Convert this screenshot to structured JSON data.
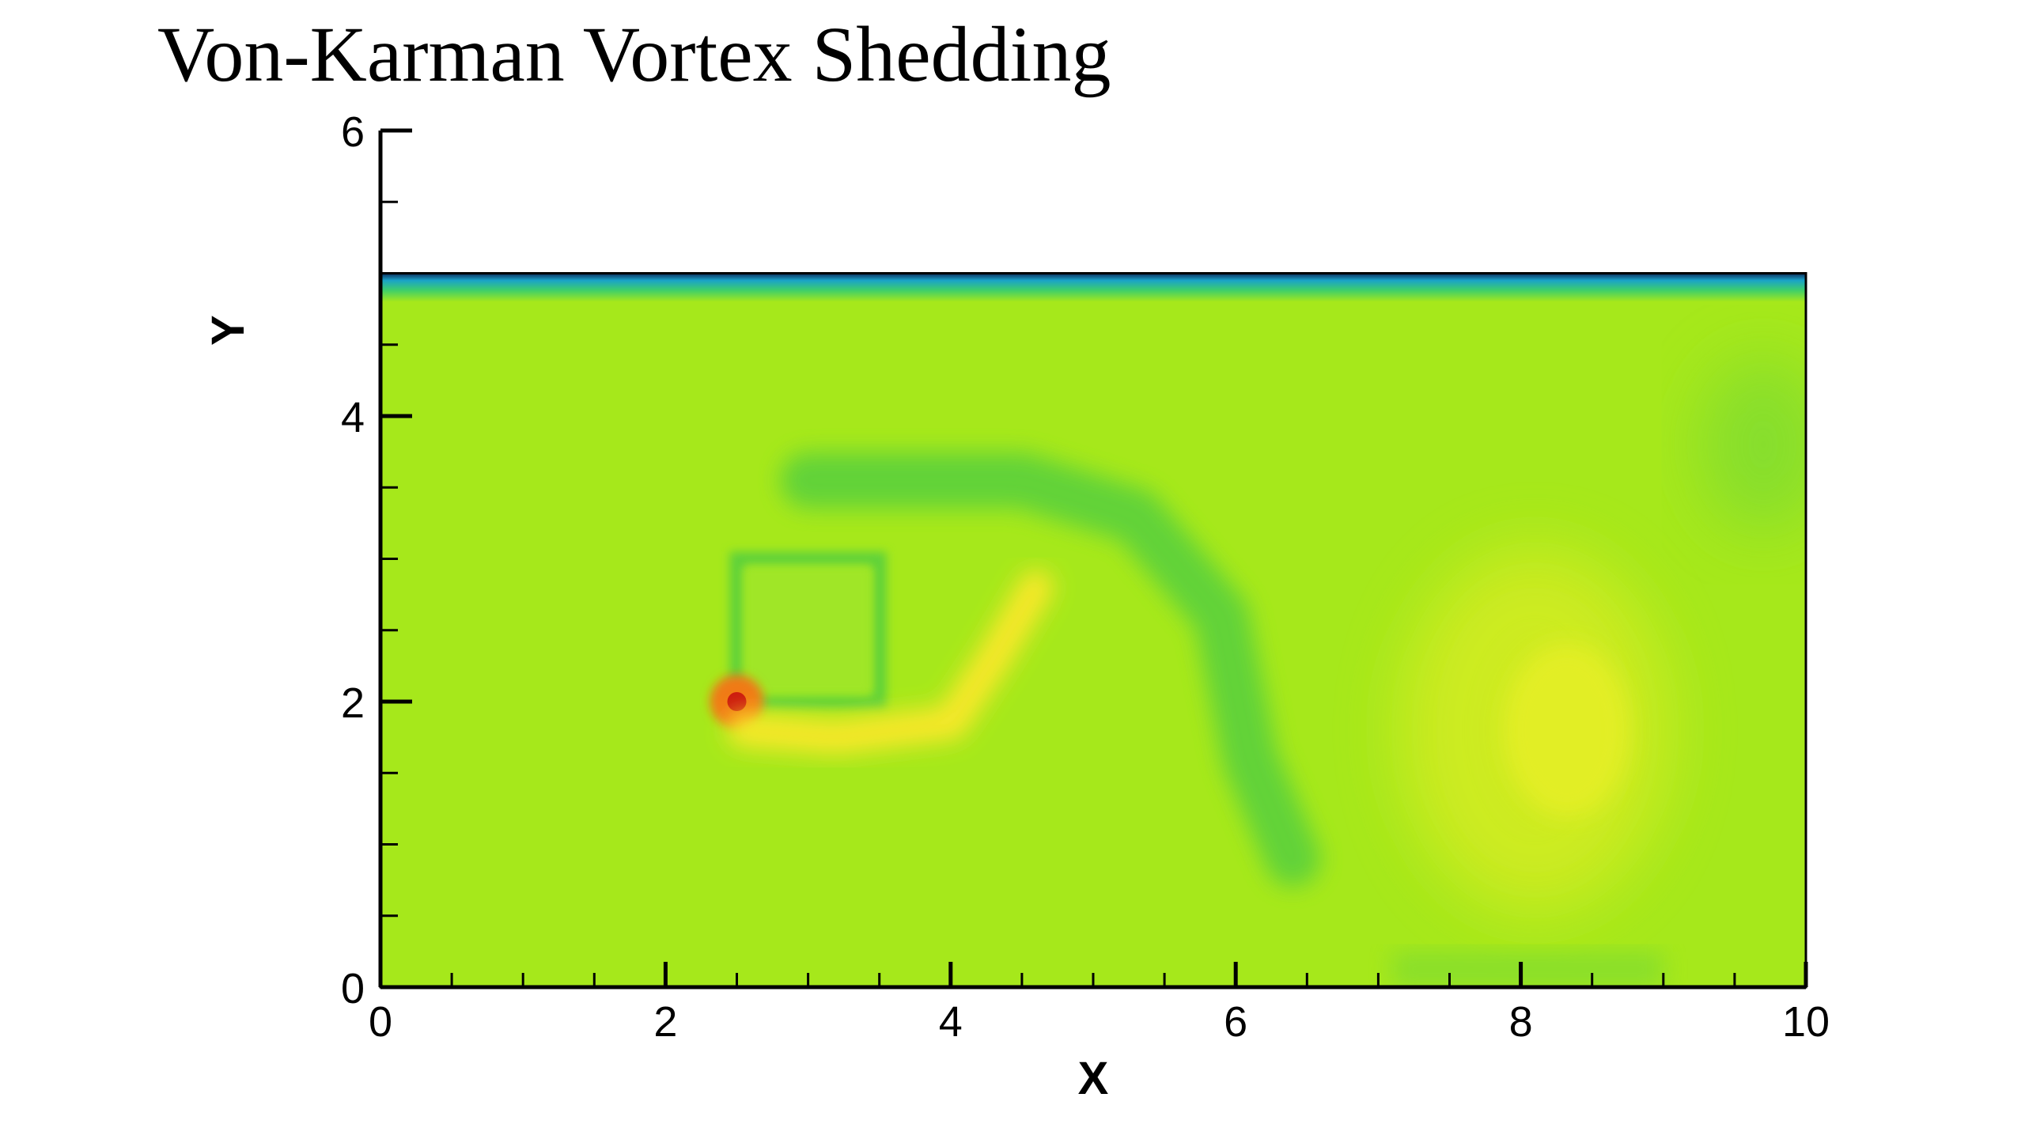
{
  "title": "Von-Karman Vortex Shedding",
  "colors": {
    "background_field": "#a6e81b",
    "top_wall_band": [
      "#0b2a5a",
      "#1aa3c8",
      "#3ecf6a"
    ],
    "low_band": "#5fd23a",
    "high_band": "#fbe82a",
    "peak": "#cc1a10"
  },
  "chart_data": {
    "type": "heatmap",
    "title": "Von-Karman Vortex Shedding",
    "xlabel": "X",
    "ylabel": "Y",
    "xlim": [
      0,
      10
    ],
    "ylim": [
      0,
      6
    ],
    "x_ticks": [
      0,
      2,
      4,
      6,
      8,
      10
    ],
    "y_ticks": [
      0,
      2,
      4,
      6
    ],
    "x_minor_step": 0.5,
    "y_minor_step": 0.5,
    "domain": {
      "x": [
        0,
        10
      ],
      "y": [
        0,
        5
      ]
    },
    "grid": false,
    "legend": "none",
    "features": [
      {
        "kind": "obstacle-square",
        "x": [
          2.5,
          3.5
        ],
        "y": [
          2,
          3
        ]
      },
      {
        "kind": "high-spot",
        "x": 2.5,
        "y": 2.0,
        "level": "peak"
      },
      {
        "kind": "high-band",
        "path_x": [
          2.55,
          3.2,
          4.0,
          4.3,
          4.6
        ],
        "path_y": [
          1.8,
          1.75,
          1.85,
          2.3,
          2.8
        ],
        "level": "high"
      },
      {
        "kind": "low-band",
        "path_x": [
          3.0,
          4.5,
          5.3,
          5.9,
          6.1,
          6.4
        ],
        "path_y": [
          3.55,
          3.55,
          3.3,
          2.6,
          1.6,
          0.9
        ],
        "level": "low"
      },
      {
        "kind": "high-vortex",
        "x": 8.1,
        "y": 1.8,
        "level": "high"
      },
      {
        "kind": "low-vortex",
        "x": 9.7,
        "y": 3.8,
        "level": "low"
      },
      {
        "kind": "wall-band",
        "y": 5.0,
        "level": "wall"
      }
    ]
  }
}
